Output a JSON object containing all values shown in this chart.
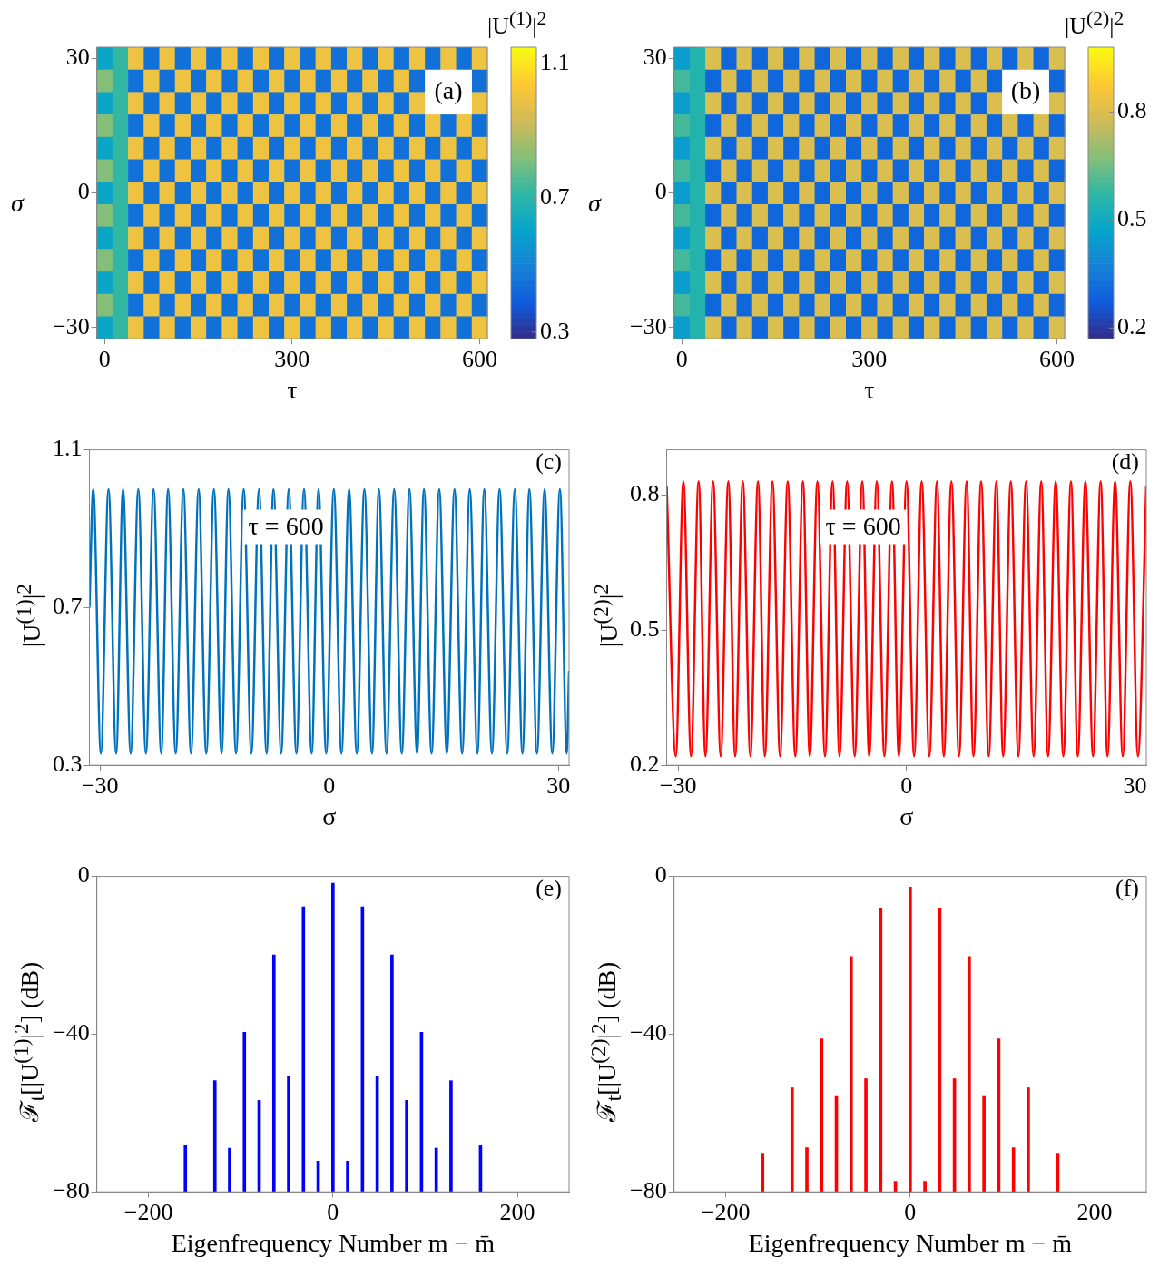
{
  "chart_data": [
    {
      "type": "heatmap",
      "xlabel": "τ",
      "ylabel": "σ",
      "clabel": "|U$^{(1)}$|$^{2}$",
      "annotations": [
        "(a)"
      ],
      "categories": [
        "0",
        null,
        null,
        null,
        null,
        null,
        null,
        null,
        null,
        null,
        null,
        null,
        "300",
        null,
        null,
        null,
        null,
        null,
        null,
        null,
        null,
        null,
        null,
        null,
        "600"
      ],
      "y_categories": [
        "30",
        null,
        null,
        null,
        null,
        null,
        "0",
        null,
        null,
        null,
        null,
        null,
        "−30"
      ],
      "clim": [
        0.28,
        1.15
      ],
      "cticks": [
        0.3,
        0.7,
        1.1
      ],
      "cells": [
        [
          0.62,
          0.72,
          1,
          0.45,
          1,
          0.45,
          1,
          0.45,
          1,
          0.45,
          1,
          0.45,
          1,
          0.45,
          1,
          0.45,
          1,
          0.45,
          1,
          0.45,
          1,
          0.45,
          1,
          0.45,
          1
        ],
        [
          0.82,
          0.72,
          0.45,
          1,
          0.45,
          1,
          0.45,
          1,
          0.45,
          1,
          0.45,
          1,
          0.45,
          1,
          0.45,
          1,
          0.45,
          1,
          0.45,
          1,
          0.45,
          null,
          null,
          null,
          0.45
        ],
        [
          0.62,
          0.72,
          1,
          0.45,
          1,
          0.45,
          1,
          0.45,
          1,
          0.45,
          1,
          0.45,
          1,
          0.45,
          1,
          0.45,
          1,
          0.45,
          1,
          0.45,
          1,
          null,
          null,
          null,
          1
        ],
        [
          0.82,
          0.72,
          0.45,
          1,
          0.45,
          1,
          0.45,
          1,
          0.45,
          1,
          0.45,
          1,
          0.45,
          1,
          0.45,
          1,
          0.45,
          1,
          0.45,
          1,
          0.45,
          1,
          0.45,
          1,
          0.45
        ],
        [
          0.62,
          0.72,
          1,
          0.45,
          1,
          0.45,
          1,
          0.45,
          1,
          0.45,
          1,
          0.45,
          1,
          0.45,
          1,
          0.45,
          1,
          0.45,
          1,
          0.45,
          1,
          0.45,
          1,
          0.45,
          1
        ],
        [
          0.82,
          0.72,
          0.45,
          1,
          0.45,
          1,
          0.45,
          1,
          0.45,
          1,
          0.45,
          1,
          0.45,
          1,
          0.45,
          1,
          0.45,
          1,
          0.45,
          1,
          0.45,
          1,
          0.45,
          1,
          0.45
        ],
        [
          0.62,
          0.72,
          1,
          0.45,
          1,
          0.45,
          1,
          0.45,
          1,
          0.45,
          1,
          0.45,
          1,
          0.45,
          1,
          0.45,
          1,
          0.45,
          1,
          0.45,
          1,
          0.45,
          1,
          0.45,
          1
        ],
        [
          0.82,
          0.72,
          0.45,
          1,
          0.45,
          1,
          0.45,
          1,
          0.45,
          1,
          0.45,
          1,
          0.45,
          1,
          0.45,
          1,
          0.45,
          1,
          0.45,
          1,
          0.45,
          1,
          0.45,
          1,
          0.45
        ],
        [
          0.62,
          0.72,
          1,
          0.45,
          1,
          0.45,
          1,
          0.45,
          1,
          0.45,
          1,
          0.45,
          1,
          0.45,
          1,
          0.45,
          1,
          0.45,
          1,
          0.45,
          1,
          0.45,
          1,
          0.45,
          1
        ],
        [
          0.82,
          0.72,
          0.45,
          1,
          0.45,
          1,
          0.45,
          1,
          0.45,
          1,
          0.45,
          1,
          0.45,
          1,
          0.45,
          1,
          0.45,
          1,
          0.45,
          1,
          0.45,
          1,
          0.45,
          1,
          0.45
        ],
        [
          0.62,
          0.72,
          1,
          0.45,
          1,
          0.45,
          1,
          0.45,
          1,
          0.45,
          1,
          0.45,
          1,
          0.45,
          1,
          0.45,
          1,
          0.45,
          1,
          0.45,
          1,
          0.45,
          1,
          0.45,
          1
        ],
        [
          0.82,
          0.72,
          0.45,
          1,
          0.45,
          1,
          0.45,
          1,
          0.45,
          1,
          0.45,
          1,
          0.45,
          1,
          0.45,
          1,
          0.45,
          1,
          0.45,
          1,
          0.45,
          1,
          0.45,
          1,
          0.45
        ],
        [
          0.62,
          0.72,
          1,
          0.45,
          1,
          0.45,
          1,
          0.45,
          1,
          0.45,
          1,
          0.45,
          1,
          0.45,
          1,
          0.45,
          1,
          0.45,
          1,
          0.45,
          1,
          0.45,
          1,
          0.45,
          1
        ]
      ]
    },
    {
      "type": "heatmap",
      "xlabel": "τ",
      "ylabel": "σ",
      "clabel": "|U$^{(2)}$|$^{2}$",
      "annotations": [
        "(b)"
      ],
      "categories": [
        "0",
        null,
        null,
        null,
        null,
        null,
        null,
        null,
        null,
        null,
        null,
        null,
        "300",
        null,
        null,
        null,
        null,
        null,
        null,
        null,
        null,
        null,
        null,
        null,
        "600"
      ],
      "y_categories": [
        "30",
        null,
        null,
        null,
        null,
        null,
        "0",
        null,
        null,
        null,
        null,
        null,
        "−30"
      ],
      "clim": [
        0.17,
        0.98
      ],
      "cticks": [
        0.2,
        0.5,
        0.8
      ],
      "cells": [
        [
          0.45,
          0.55,
          0.8,
          0.3,
          0.8,
          0.3,
          0.8,
          0.3,
          0.8,
          0.3,
          0.8,
          0.3,
          0.8,
          0.3,
          0.8,
          0.3,
          0.8,
          0.3,
          0.8,
          0.3,
          0.8,
          0.3,
          0.8,
          0.3,
          0.8
        ],
        [
          0.6,
          0.55,
          0.3,
          0.8,
          0.3,
          0.8,
          0.3,
          0.8,
          0.3,
          0.8,
          0.3,
          0.8,
          0.3,
          0.8,
          0.3,
          0.8,
          0.3,
          0.8,
          0.3,
          0.8,
          0.3,
          null,
          null,
          null,
          0.3
        ],
        [
          0.45,
          0.55,
          0.8,
          0.3,
          0.8,
          0.3,
          0.8,
          0.3,
          0.8,
          0.3,
          0.8,
          0.3,
          0.8,
          0.3,
          0.8,
          0.3,
          0.8,
          0.3,
          0.8,
          0.3,
          0.8,
          null,
          null,
          null,
          0.8
        ],
        [
          0.6,
          0.55,
          0.3,
          0.8,
          0.3,
          0.8,
          0.3,
          0.8,
          0.3,
          0.8,
          0.3,
          0.8,
          0.3,
          0.8,
          0.3,
          0.8,
          0.3,
          0.8,
          0.3,
          0.8,
          0.3,
          0.8,
          0.3,
          0.8,
          0.3
        ],
        [
          0.45,
          0.55,
          0.8,
          0.3,
          0.8,
          0.3,
          0.8,
          0.3,
          0.8,
          0.3,
          0.8,
          0.3,
          0.8,
          0.3,
          0.8,
          0.3,
          0.8,
          0.3,
          0.8,
          0.3,
          0.8,
          0.3,
          0.8,
          0.3,
          0.8
        ],
        [
          0.6,
          0.55,
          0.3,
          0.8,
          0.3,
          0.8,
          0.3,
          0.8,
          0.3,
          0.8,
          0.3,
          0.8,
          0.3,
          0.8,
          0.3,
          0.8,
          0.3,
          0.8,
          0.3,
          0.8,
          0.3,
          0.8,
          0.3,
          0.8,
          0.3
        ],
        [
          0.45,
          0.55,
          0.8,
          0.3,
          0.8,
          0.3,
          0.8,
          0.3,
          0.8,
          0.3,
          0.8,
          0.3,
          0.8,
          0.3,
          0.8,
          0.3,
          0.8,
          0.3,
          0.8,
          0.3,
          0.8,
          0.3,
          0.8,
          0.3,
          0.8
        ],
        [
          0.6,
          0.55,
          0.3,
          0.8,
          0.3,
          0.8,
          0.3,
          0.8,
          0.3,
          0.8,
          0.3,
          0.8,
          0.3,
          0.8,
          0.3,
          0.8,
          0.3,
          0.8,
          0.3,
          0.8,
          0.3,
          0.8,
          0.3,
          0.8,
          0.3
        ],
        [
          0.45,
          0.55,
          0.8,
          0.3,
          0.8,
          0.3,
          0.8,
          0.3,
          0.8,
          0.3,
          0.8,
          0.3,
          0.8,
          0.3,
          0.8,
          0.3,
          0.8,
          0.3,
          0.8,
          0.3,
          0.8,
          0.3,
          0.8,
          0.3,
          0.8
        ],
        [
          0.6,
          0.55,
          0.3,
          0.8,
          0.3,
          0.8,
          0.3,
          0.8,
          0.3,
          0.8,
          0.3,
          0.8,
          0.3,
          0.8,
          0.3,
          0.8,
          0.3,
          0.8,
          0.3,
          0.8,
          0.3,
          0.8,
          0.3,
          0.8,
          0.3
        ],
        [
          0.45,
          0.55,
          0.8,
          0.3,
          0.8,
          0.3,
          0.8,
          0.3,
          0.8,
          0.3,
          0.8,
          0.3,
          0.8,
          0.3,
          0.8,
          0.3,
          0.8,
          0.3,
          0.8,
          0.3,
          0.8,
          0.3,
          0.8,
          0.3,
          0.8
        ],
        [
          0.6,
          0.55,
          0.3,
          0.8,
          0.3,
          0.8,
          0.3,
          0.8,
          0.3,
          0.8,
          0.3,
          0.8,
          0.3,
          0.8,
          0.3,
          0.8,
          0.3,
          0.8,
          0.3,
          0.8,
          0.3,
          0.8,
          0.3,
          0.8,
          0.3
        ],
        [
          0.45,
          0.55,
          0.8,
          0.3,
          0.8,
          0.3,
          0.8,
          0.3,
          0.8,
          0.3,
          0.8,
          0.3,
          0.8,
          0.3,
          0.8,
          0.3,
          0.8,
          0.3,
          0.8,
          0.3,
          0.8,
          0.3,
          0.8,
          0.3,
          0.8
        ]
      ]
    },
    {
      "type": "line",
      "xlabel": "σ",
      "ylabel": "|U$^{(1)}$|$^{2}$",
      "annotations": [
        "(c)",
        "τ = 600"
      ],
      "color": "#0072bd",
      "xlim": [
        -31.4,
        31.4
      ],
      "xticks": [
        -30,
        0,
        30
      ],
      "ylim": [
        0.3,
        1.1
      ],
      "yticks": [
        0.3,
        0.7,
        1.1
      ],
      "x": [
        -31.4,
        -30.9,
        -29.9,
        -28.9,
        -27.9,
        -27.0,
        -26.0,
        -25.0,
        -24.0,
        -23.0,
        -22.0,
        -21.1,
        -20.1,
        -19.1,
        -18.1,
        -17.1,
        -16.1,
        -15.1,
        -14.1,
        -13.2,
        -12.2,
        -11.2,
        -10.2,
        -9.2,
        -8.2,
        -7.3,
        -6.3,
        -5.3,
        -4.3,
        -3.3,
        -2.3,
        -1.4,
        -0.4,
        0.6,
        1.6,
        2.6,
        3.6,
        4.6,
        5.6,
        6.5,
        7.5,
        8.5,
        9.5,
        10.5,
        11.5,
        12.4,
        13.4,
        14.4,
        15.4,
        16.4,
        17.4,
        18.4,
        19.4,
        20.3,
        21.3,
        22.3,
        23.3,
        24.3,
        25.3,
        26.2,
        27.2,
        28.2,
        29.2,
        30.2,
        31.1,
        31.4
      ],
      "values": [
        0.7,
        1,
        0.33,
        1,
        0.33,
        1,
        0.33,
        1,
        0.33,
        1,
        0.33,
        1,
        0.33,
        1,
        0.33,
        1,
        0.33,
        1,
        0.33,
        1,
        0.33,
        1,
        0.33,
        1,
        0.33,
        1,
        0.33,
        1,
        0.33,
        1,
        0.33,
        1,
        0.33,
        1,
        0.33,
        1,
        0.33,
        1,
        0.33,
        1,
        0.33,
        1,
        0.33,
        1,
        0.33,
        1,
        0.33,
        1,
        0.33,
        1,
        0.33,
        1,
        0.33,
        1,
        0.33,
        1,
        0.33,
        1,
        0.33,
        1,
        0.33,
        1,
        0.33,
        1,
        0.33,
        0.54
      ]
    },
    {
      "type": "line",
      "xlabel": "σ",
      "ylabel": "|U$^{(2)}$|$^{2}$",
      "annotations": [
        "(d)",
        "τ = 600"
      ],
      "color": "#ff0000",
      "xlim": [
        -31.5,
        31.5
      ],
      "xticks": [
        -30,
        0,
        30
      ],
      "ylim": [
        0.2,
        0.9
      ],
      "yticks": [
        0.2,
        0.5,
        0.8
      ],
      "x": [
        -31.5,
        -30.3,
        -29.3,
        -28.3,
        -27.3,
        -26.4,
        -25.4,
        -24.4,
        -23.4,
        -22.5,
        -21.5,
        -20.5,
        -19.5,
        -18.6,
        -17.6,
        -16.6,
        -15.6,
        -14.6,
        -13.6,
        -12.7,
        -11.7,
        -10.7,
        -9.7,
        -8.8,
        -7.8,
        -6.8,
        -5.8,
        -4.9,
        -3.9,
        -2.9,
        -1.9,
        -1.0,
        0.0,
        1.0,
        2.0,
        3.0,
        4.0,
        4.9,
        5.9,
        6.9,
        7.9,
        8.8,
        9.8,
        10.8,
        11.8,
        12.7,
        13.7,
        14.7,
        15.7,
        16.7,
        17.7,
        18.6,
        19.6,
        20.6,
        21.6,
        22.5,
        23.5,
        24.5,
        25.5,
        26.4,
        27.4,
        28.4,
        29.4,
        30.4,
        31.5
      ],
      "values": [
        0.82,
        0.22,
        0.83,
        0.22,
        0.83,
        0.22,
        0.83,
        0.22,
        0.83,
        0.22,
        0.83,
        0.22,
        0.83,
        0.22,
        0.83,
        0.22,
        0.83,
        0.22,
        0.83,
        0.22,
        0.83,
        0.22,
        0.83,
        0.22,
        0.83,
        0.22,
        0.83,
        0.22,
        0.83,
        0.22,
        0.83,
        0.22,
        0.83,
        0.22,
        0.83,
        0.22,
        0.83,
        0.22,
        0.83,
        0.22,
        0.83,
        0.22,
        0.83,
        0.22,
        0.83,
        0.22,
        0.83,
        0.22,
        0.83,
        0.22,
        0.83,
        0.22,
        0.83,
        0.22,
        0.83,
        0.22,
        0.83,
        0.22,
        0.83,
        0.22,
        0.83,
        0.22,
        0.83,
        0.22,
        0.82
      ]
    },
    {
      "type": "bar",
      "xlabel": "Eigenfrequency Number m − m̄",
      "ylabel": "ℱ$_{t}$[|U$^{(1)}$|$^{2}$] (dB)",
      "annotations": [
        "(e)"
      ],
      "color": "#0000ff",
      "xlim": [
        -256,
        256
      ],
      "xticks": [
        -200,
        0,
        200
      ],
      "ylim": [
        -80,
        0
      ],
      "yticks": [
        -80,
        -40,
        0
      ],
      "x": [
        -160,
        -128,
        -112,
        -96,
        -80,
        -64,
        -48,
        -32,
        -16,
        0,
        16,
        32,
        48,
        64,
        80,
        96,
        112,
        128,
        160
      ],
      "base": [
        -80,
        -80,
        -80,
        -80,
        -80,
        -80,
        -80,
        -80,
        -80,
        -80,
        -80,
        -80,
        -80,
        -80,
        -80,
        -80,
        -80,
        -80,
        -80
      ],
      "values": [
        11.7,
        28.2,
        11.1,
        40.5,
        23.2,
        60.1,
        29.4,
        72.3,
        7.8,
        78.3,
        7.8,
        72.3,
        29.4,
        60.1,
        23.2,
        40.5,
        11.1,
        28.2,
        11.7
      ]
    },
    {
      "type": "bar",
      "xlabel": "Eigenfrequency Number m − m̄",
      "ylabel": "ℱ$_{t}$[|U$^{(2)}$|$^{2}$] (dB)",
      "annotations": [
        "(f)"
      ],
      "color": "#ff0000",
      "xlim": [
        -256,
        256
      ],
      "xticks": [
        -200,
        0,
        200
      ],
      "ylim": [
        -80,
        0
      ],
      "yticks": [
        -80,
        -40,
        0
      ],
      "x": [
        -160,
        -128,
        -112,
        -96,
        -80,
        -64,
        -48,
        -32,
        -16,
        0,
        16,
        32,
        48,
        64,
        80,
        96,
        112,
        128,
        160
      ],
      "base": [
        -80,
        -80,
        -80,
        -80,
        -80,
        -80,
        -80,
        -80,
        -80,
        -80,
        -80,
        -80,
        -80,
        -80,
        -80,
        -80,
        -80,
        -80,
        -80
      ],
      "values": [
        9.8,
        26.4,
        11.2,
        38.8,
        24.2,
        59.7,
        28.7,
        72.0,
        2.7,
        77.3,
        2.7,
        72.0,
        28.7,
        59.7,
        24.2,
        38.8,
        11.2,
        26.4,
        9.8
      ]
    }
  ]
}
